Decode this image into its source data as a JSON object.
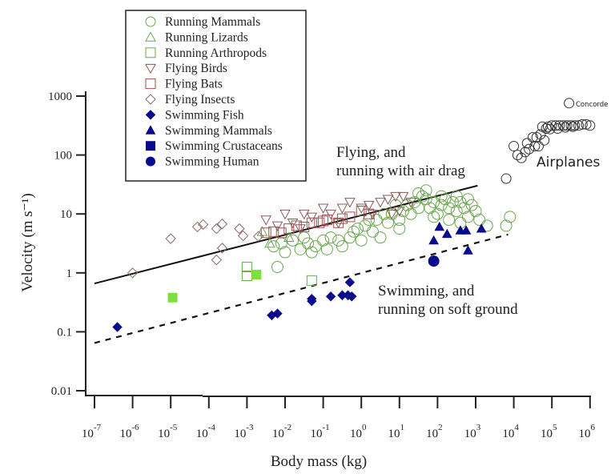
{
  "chart_data": {
    "type": "scatter",
    "title": "",
    "xlabel": "Body mass (kg)",
    "ylabel": "Velocity (m s⁻¹)",
    "xscale": "log",
    "yscale": "log",
    "xlim": [
      1e-07,
      1000000.0
    ],
    "ylim": [
      0.01,
      1000
    ],
    "grid": false,
    "legend_position": "top-left",
    "x_ticks": [
      {
        "base": "10",
        "exp": "-7",
        "value": -7
      },
      {
        "base": "10",
        "exp": "-6",
        "value": -6
      },
      {
        "base": "10",
        "exp": "-5",
        "value": -5
      },
      {
        "base": "10",
        "exp": "-4",
        "value": -4
      },
      {
        "base": "10",
        "exp": "-3",
        "value": -3
      },
      {
        "base": "10",
        "exp": "-2",
        "value": -2
      },
      {
        "base": "10",
        "exp": "-1",
        "value": -1
      },
      {
        "base": "10",
        "exp": "0",
        "value": 0
      },
      {
        "base": "10",
        "exp": "1",
        "value": 1
      },
      {
        "base": "10",
        "exp": "2",
        "value": 2
      },
      {
        "base": "10",
        "exp": "3",
        "value": 3
      },
      {
        "base": "10",
        "exp": "4",
        "value": 4
      },
      {
        "base": "10",
        "exp": "5",
        "value": 5
      },
      {
        "base": "10",
        "exp": "6",
        "value": 6
      }
    ],
    "y_ticks": [
      {
        "label": "0.01",
        "value": -2
      },
      {
        "label": "0.1",
        "value": -1
      },
      {
        "label": "1",
        "value": 0
      },
      {
        "label": "10",
        "value": 1
      },
      {
        "label": "100",
        "value": 2
      },
      {
        "label": "1000",
        "value": 3
      }
    ],
    "series": [
      {
        "name": "Running Mammals",
        "marker": "circle",
        "fill": false,
        "color": "#6aa84f",
        "points_log": [
          [
            -2.3,
            0.45
          ],
          [
            -2.1,
            0.5
          ],
          [
            -2.0,
            0.35
          ],
          [
            -1.8,
            0.55
          ],
          [
            -1.6,
            0.4
          ],
          [
            -1.5,
            0.6
          ],
          [
            -1.4,
            0.5
          ],
          [
            -1.2,
            0.45
          ],
          [
            -1.0,
            0.55
          ],
          [
            -0.9,
            0.4
          ],
          [
            -0.8,
            0.6
          ],
          [
            -0.6,
            0.55
          ],
          [
            -0.5,
            0.45
          ],
          [
            -0.3,
            0.6
          ],
          [
            -0.2,
            0.7
          ],
          [
            0.0,
            0.55
          ],
          [
            0.1,
            0.8
          ],
          [
            0.3,
            0.7
          ],
          [
            0.4,
            0.9
          ],
          [
            0.5,
            0.6
          ],
          [
            0.7,
            0.85
          ],
          [
            0.8,
            1.0
          ],
          [
            1.0,
            0.9
          ],
          [
            1.1,
            1.05
          ],
          [
            1.3,
            1.0
          ],
          [
            1.4,
            1.2
          ],
          [
            1.5,
            1.1
          ],
          [
            1.6,
            1.3
          ],
          [
            1.7,
            1.25
          ],
          [
            1.8,
            1.1
          ],
          [
            1.9,
            1.2
          ],
          [
            2.0,
            1.0
          ],
          [
            2.1,
            1.15
          ],
          [
            2.2,
            1.25
          ],
          [
            2.3,
            1.1
          ],
          [
            2.4,
            1.2
          ],
          [
            2.5,
            1.05
          ],
          [
            2.6,
            1.2
          ],
          [
            2.7,
            1.1
          ],
          [
            2.8,
            1.25
          ],
          [
            2.9,
            1.15
          ],
          [
            3.0,
            1.05
          ],
          [
            1.2,
            1.15
          ],
          [
            1.5,
            1.35
          ],
          [
            1.7,
            1.4
          ],
          [
            2.1,
            1.3
          ],
          [
            2.5,
            1.3
          ],
          [
            2.8,
            0.95
          ],
          [
            3.1,
            0.9
          ],
          [
            0.6,
            1.0
          ],
          [
            0.2,
            0.9
          ],
          [
            -0.1,
            0.75
          ],
          [
            1.9,
            0.95
          ],
          [
            2.3,
            0.9
          ],
          [
            3.3,
            0.8
          ],
          [
            3.8,
            0.8
          ],
          [
            3.9,
            0.95
          ],
          [
            -1.3,
            0.35
          ],
          [
            -2.2,
            0.1
          ],
          [
            1.0,
            0.75
          ],
          [
            0.9,
            1.15
          ],
          [
            2.6,
            0.85
          ]
        ]
      },
      {
        "name": "Running Lizards",
        "marker": "triangle-up",
        "fill": false,
        "color": "#6aa84f",
        "points_log": [
          [
            -2.4,
            0.5
          ],
          [
            -2.6,
            0.7
          ],
          [
            -1.9,
            0.6
          ]
        ]
      },
      {
        "name": "Running Arthropods",
        "marker": "square",
        "fill": false,
        "color": "#6aa84f",
        "points_log": [
          [
            -3.0,
            0.1
          ],
          [
            -3.0,
            -0.05
          ],
          [
            -1.3,
            -0.13
          ]
        ]
      },
      {
        "name": "Flying Birds",
        "marker": "triangle-down",
        "fill": false,
        "color": "#8b5a5a",
        "points_log": [
          [
            -2.5,
            0.9
          ],
          [
            -2.0,
            1.0
          ],
          [
            -1.8,
            0.85
          ],
          [
            -1.5,
            1.0
          ],
          [
            -1.3,
            0.95
          ],
          [
            -1.0,
            1.1
          ],
          [
            -0.8,
            1.0
          ],
          [
            -0.5,
            1.1
          ],
          [
            -0.3,
            1.2
          ],
          [
            0.0,
            1.1
          ],
          [
            0.2,
            1.15
          ],
          [
            0.5,
            1.2
          ],
          [
            0.7,
            1.25
          ],
          [
            0.9,
            1.3
          ],
          [
            1.1,
            1.3
          ],
          [
            1.3,
            1.2
          ],
          [
            -2.2,
            0.8
          ],
          [
            -1.6,
            0.75
          ],
          [
            -0.6,
            0.85
          ],
          [
            0.3,
            1.0
          ],
          [
            0.8,
            1.0
          ],
          [
            1.0,
            1.05
          ]
        ]
      },
      {
        "name": "Flying Bats",
        "marker": "square",
        "fill": false,
        "color": "#a05050",
        "points_log": [
          [
            -2.3,
            0.7
          ],
          [
            -2.1,
            0.68
          ],
          [
            -1.9,
            0.75
          ],
          [
            -1.7,
            0.8
          ],
          [
            -1.5,
            0.78
          ],
          [
            -1.3,
            0.85
          ],
          [
            -1.1,
            0.85
          ],
          [
            -0.9,
            0.9
          ],
          [
            -0.6,
            0.85
          ],
          [
            -0.3,
            0.95
          ],
          [
            0.0,
            1.05
          ],
          [
            0.2,
            1.0
          ],
          [
            -0.5,
            0.92
          ],
          [
            -2.5,
            0.68
          ],
          [
            -1.0,
            0.88
          ]
        ]
      },
      {
        "name": "Flying Insects",
        "marker": "diamond",
        "fill": false,
        "color": "#8b6a6a",
        "points_log": [
          [
            -6.0,
            0.0
          ],
          [
            -5.0,
            0.58
          ],
          [
            -4.3,
            0.78
          ],
          [
            -4.15,
            0.82
          ],
          [
            -3.8,
            0.75
          ],
          [
            -3.65,
            0.83
          ],
          [
            -3.8,
            0.22
          ],
          [
            -3.2,
            0.75
          ],
          [
            -3.1,
            0.63
          ],
          [
            -2.7,
            0.62
          ],
          [
            -3.65,
            0.42
          ]
        ]
      },
      {
        "name": "Swimming Fish",
        "marker": "diamond",
        "fill": true,
        "color": "#0a0a8c",
        "points_log": [
          [
            -6.4,
            -0.92
          ],
          [
            -2.35,
            -0.72
          ],
          [
            -2.2,
            -0.69
          ],
          [
            -1.3,
            -0.48
          ],
          [
            -1.3,
            -0.44
          ],
          [
            -0.8,
            -0.4
          ],
          [
            -0.5,
            -0.38
          ],
          [
            -0.35,
            -0.38
          ],
          [
            -0.25,
            -0.4
          ],
          [
            -0.3,
            -0.16
          ]
        ]
      },
      {
        "name": "Swimming Mammals",
        "marker": "triangle-up",
        "fill": true,
        "color": "#0a0a8c",
        "points_log": [
          [
            1.9,
            0.55
          ],
          [
            2.05,
            0.78
          ],
          [
            2.25,
            0.66
          ],
          [
            2.6,
            0.72
          ],
          [
            2.75,
            0.72
          ],
          [
            3.15,
            0.75
          ],
          [
            2.8,
            0.38
          ]
        ]
      },
      {
        "name": "Swimming Crustaceans",
        "marker": "square",
        "fill": true,
        "color": "#7ce13c",
        "legend_color": "#0a0a8c",
        "points_log": [
          [
            -4.95,
            -0.42
          ],
          [
            -2.75,
            -0.03
          ]
        ]
      },
      {
        "name": "Swimming Human",
        "marker": "circle",
        "fill": true,
        "color": "#0a0a8c",
        "points_log": [
          [
            1.9,
            0.2
          ]
        ]
      },
      {
        "name": "Airplanes",
        "marker": "circle",
        "fill": false,
        "color": "#333333",
        "points_log": [
          [
            3.8,
            1.6
          ],
          [
            4.0,
            2.15
          ],
          [
            4.2,
            1.95
          ],
          [
            4.35,
            2.2
          ],
          [
            4.5,
            2.3
          ],
          [
            4.6,
            2.3
          ],
          [
            4.7,
            2.35
          ],
          [
            4.85,
            2.45
          ],
          [
            4.9,
            2.48
          ],
          [
            5.0,
            2.5
          ],
          [
            5.1,
            2.5
          ],
          [
            5.2,
            2.5
          ],
          [
            5.3,
            2.5
          ],
          [
            5.4,
            2.5
          ],
          [
            5.5,
            2.5
          ],
          [
            5.6,
            2.5
          ],
          [
            5.7,
            2.5
          ],
          [
            5.8,
            2.52
          ],
          [
            5.9,
            2.52
          ],
          [
            6.0,
            2.5
          ],
          [
            4.75,
            2.48
          ],
          [
            4.95,
            2.44
          ],
          [
            5.15,
            2.45
          ],
          [
            5.35,
            2.47
          ],
          [
            5.55,
            2.48
          ],
          [
            4.4,
            2.1
          ],
          [
            4.55,
            2.15
          ],
          [
            4.65,
            2.15
          ],
          [
            4.8,
            2.25
          ],
          [
            4.3,
            2.05
          ],
          [
            4.1,
            2.0
          ],
          [
            5.45,
            2.88
          ]
        ]
      }
    ],
    "fit_lines": [
      {
        "name": "Flying, and running with air drag",
        "style": "solid",
        "x_log": [
          -7,
          3.05
        ],
        "y_log": [
          -0.18,
          1.48
        ]
      },
      {
        "name": "Swimming, and running on soft ground",
        "style": "dashed",
        "x_log": [
          -7,
          3.85
        ],
        "y_log": [
          -1.19,
          0.65
        ]
      }
    ],
    "annotations": [
      {
        "lines": [
          "Flying, and",
          "running with air drag"
        ]
      },
      {
        "lines": [
          "Swimming, and",
          "running on soft ground"
        ]
      },
      {
        "text": "Airplanes"
      },
      {
        "text": "Concorde"
      }
    ]
  }
}
